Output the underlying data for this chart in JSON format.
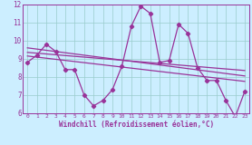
{
  "xlabel": "Windchill (Refroidissement éolien,°C)",
  "bg_color": "#cceeff",
  "line_color": "#993399",
  "grid_color": "#99cccc",
  "x": [
    0,
    1,
    2,
    3,
    4,
    5,
    6,
    7,
    8,
    9,
    10,
    11,
    12,
    13,
    14,
    15,
    16,
    17,
    18,
    19,
    20,
    21,
    22,
    23
  ],
  "y": [
    8.8,
    9.2,
    9.8,
    9.4,
    8.4,
    8.4,
    7.0,
    6.4,
    6.7,
    7.3,
    8.6,
    10.8,
    11.9,
    11.5,
    8.8,
    8.9,
    10.9,
    10.4,
    8.5,
    7.8,
    7.8,
    6.7,
    5.8,
    7.2
  ],
  "trend_lines": [
    [
      9.6,
      8.05
    ],
    [
      9.35,
      8.35
    ],
    [
      9.15,
      7.75
    ]
  ],
  "ylim": [
    6,
    12
  ],
  "xlim": [
    -0.5,
    23.5
  ]
}
